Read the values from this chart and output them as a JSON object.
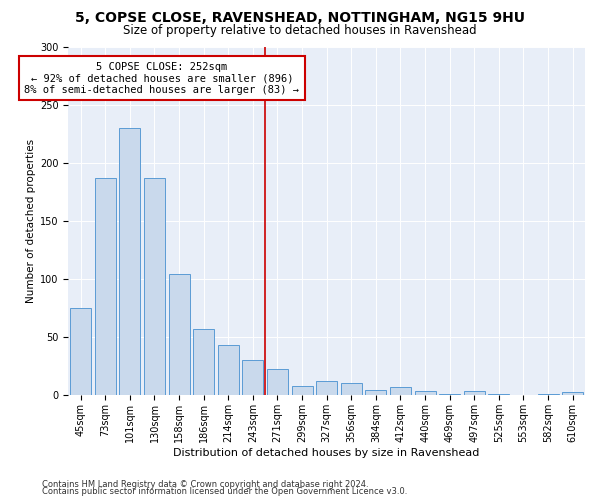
{
  "title1": "5, COPSE CLOSE, RAVENSHEAD, NOTTINGHAM, NG15 9HU",
  "title2": "Size of property relative to detached houses in Ravenshead",
  "xlabel": "Distribution of detached houses by size in Ravenshead",
  "ylabel": "Number of detached properties",
  "categories": [
    "45sqm",
    "73sqm",
    "101sqm",
    "130sqm",
    "158sqm",
    "186sqm",
    "214sqm",
    "243sqm",
    "271sqm",
    "299sqm",
    "327sqm",
    "356sqm",
    "384sqm",
    "412sqm",
    "440sqm",
    "469sqm",
    "497sqm",
    "525sqm",
    "553sqm",
    "582sqm",
    "610sqm"
  ],
  "values": [
    75,
    187,
    230,
    187,
    104,
    57,
    43,
    30,
    22,
    8,
    12,
    10,
    4,
    7,
    3,
    1,
    3,
    1,
    0,
    1,
    2
  ],
  "bar_color": "#c9d9ec",
  "bar_edge_color": "#5b9bd5",
  "vline_index": 7.5,
  "vline_color": "#cc0000",
  "annotation_text": "5 COPSE CLOSE: 252sqm\n← 92% of detached houses are smaller (896)\n8% of semi-detached houses are larger (83) →",
  "annotation_box_color": "#ffffff",
  "annotation_box_edge_color": "#cc0000",
  "footer1": "Contains HM Land Registry data © Crown copyright and database right 2024.",
  "footer2": "Contains public sector information licensed under the Open Government Licence v3.0.",
  "bg_color": "#e8eef8",
  "ylim": [
    0,
    300
  ],
  "yticks": [
    0,
    50,
    100,
    150,
    200,
    250,
    300
  ],
  "title1_fontsize": 10,
  "title2_fontsize": 8.5,
  "xlabel_fontsize": 8,
  "ylabel_fontsize": 7.5,
  "tick_fontsize": 7,
  "annotation_fontsize": 7.5,
  "footer_fontsize": 6
}
